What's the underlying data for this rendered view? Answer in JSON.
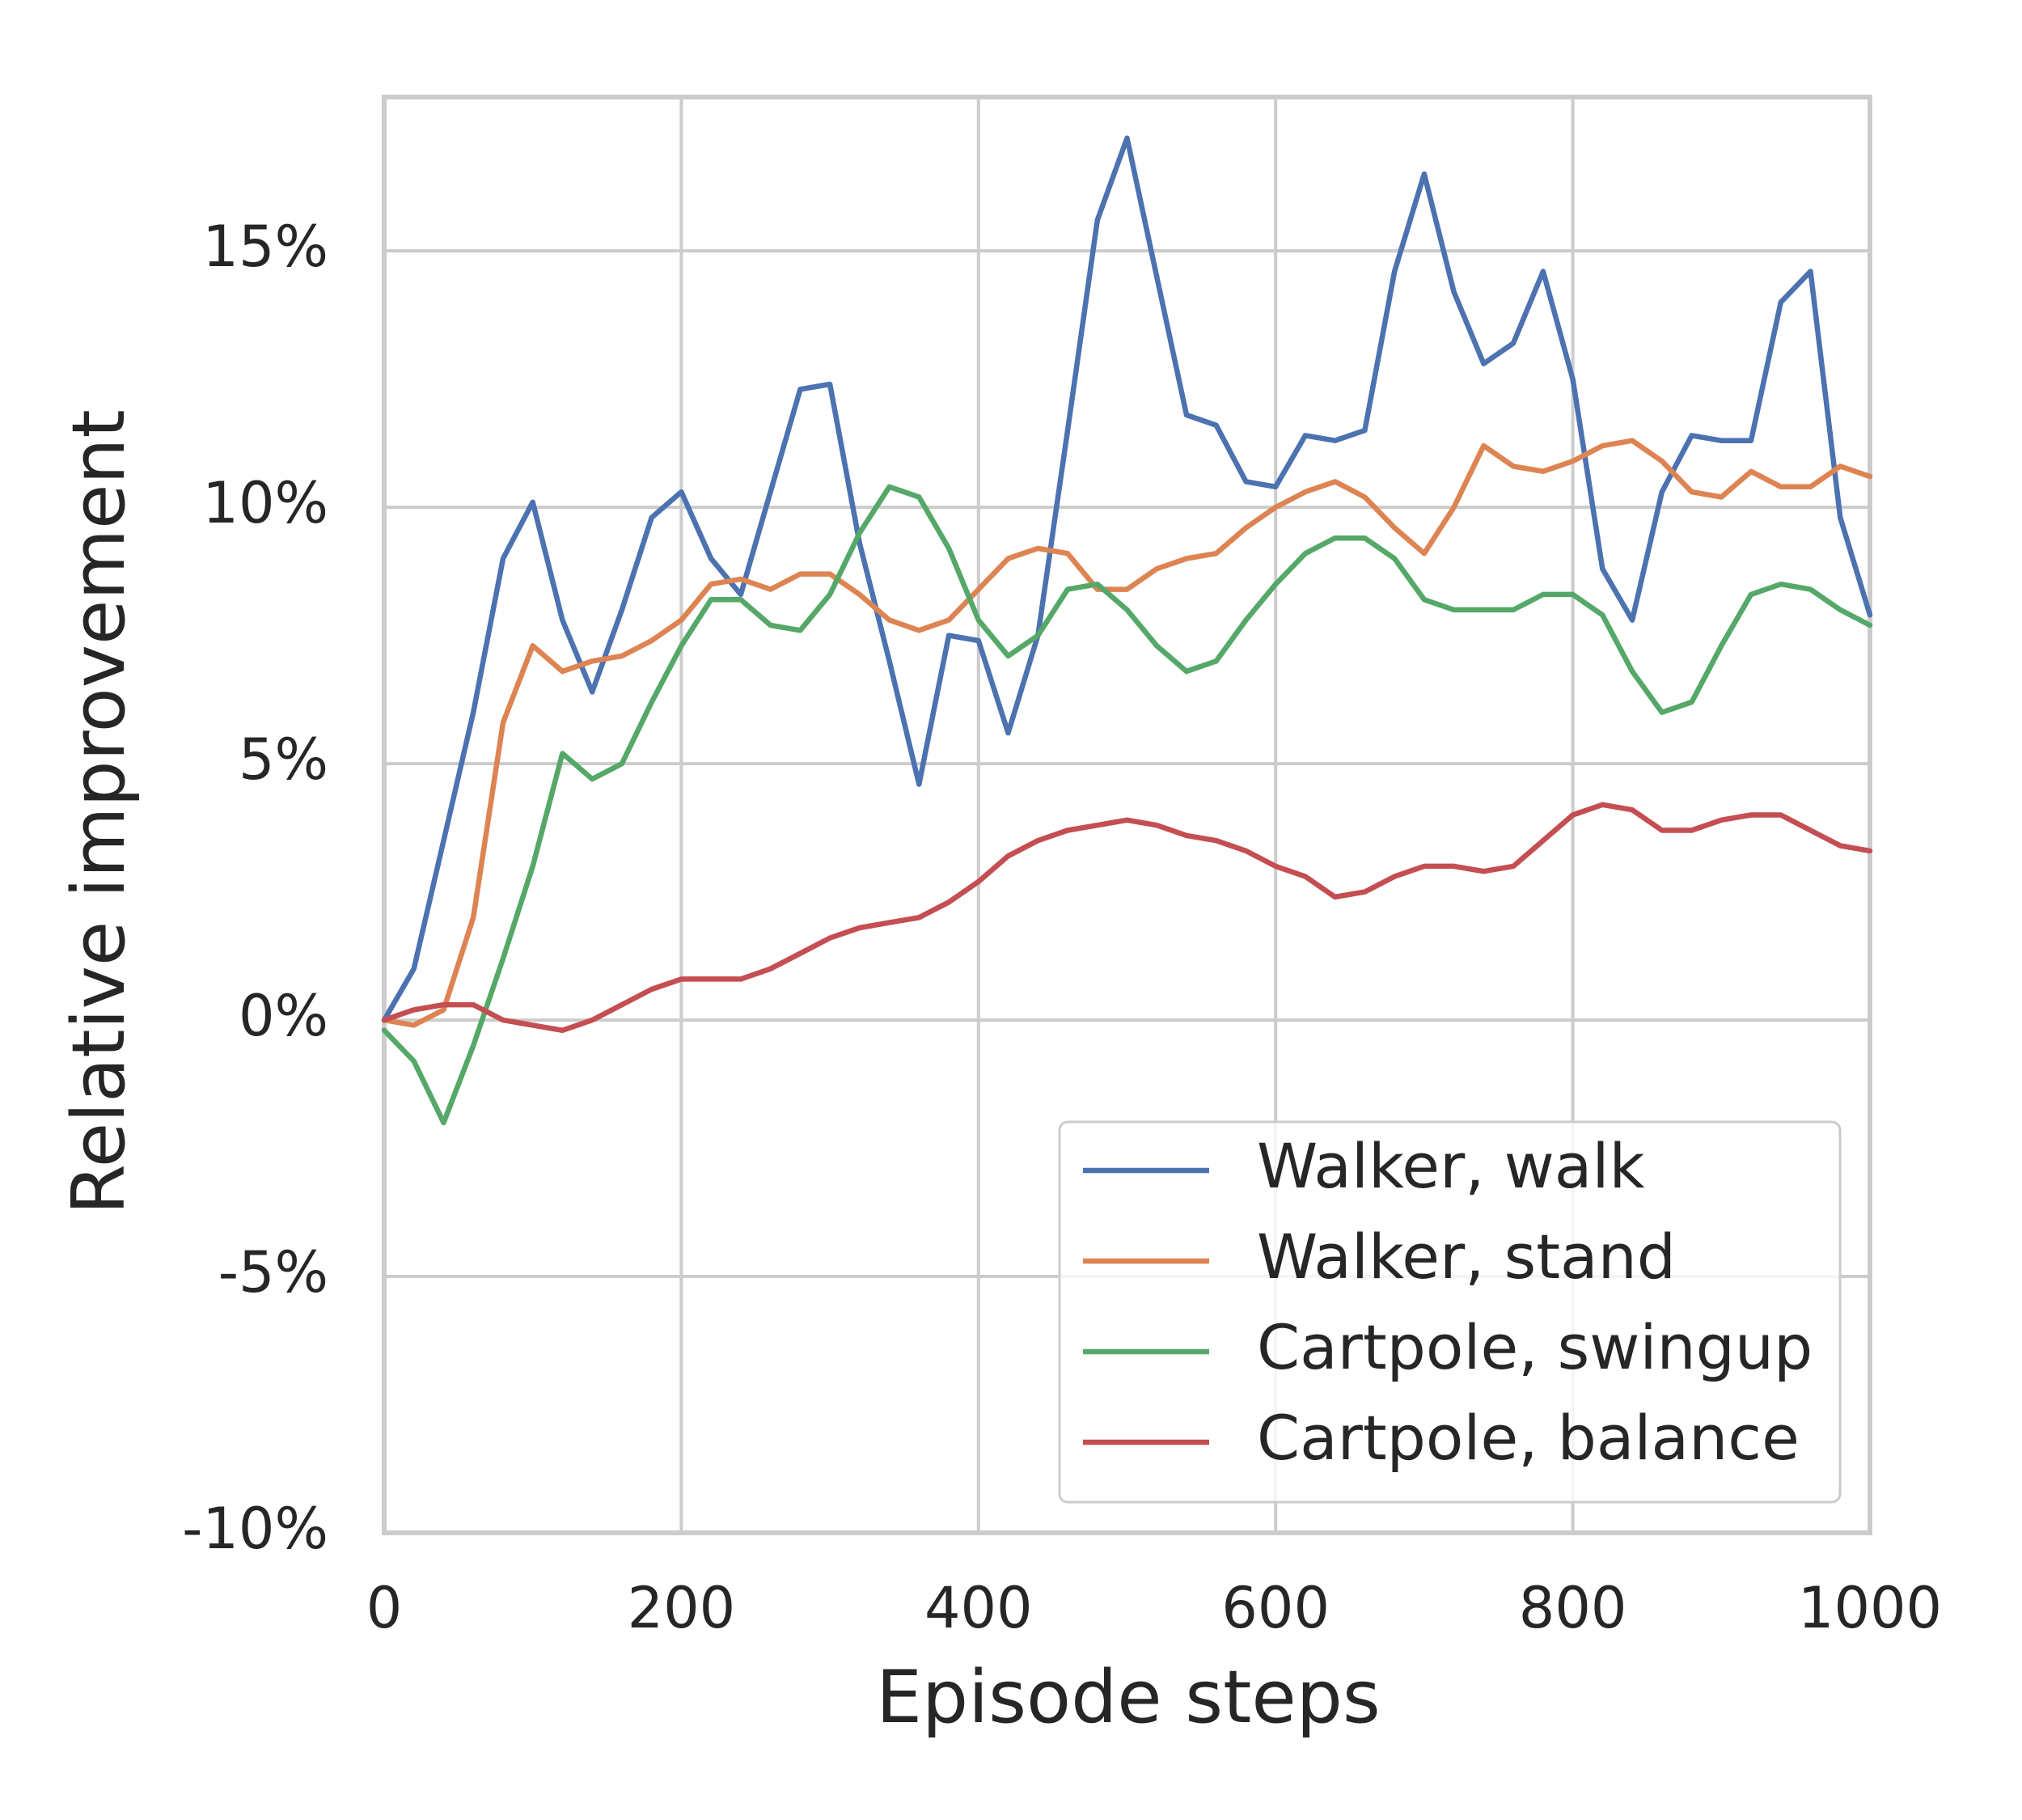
{
  "chart_data": {
    "type": "line",
    "xlabel": "Episode steps",
    "ylabel": "Relative improvement",
    "x": [
      0,
      20,
      40,
      60,
      80,
      100,
      120,
      140,
      160,
      180,
      200,
      220,
      240,
      260,
      280,
      300,
      320,
      340,
      360,
      380,
      400,
      420,
      440,
      460,
      480,
      500,
      520,
      540,
      560,
      580,
      600,
      620,
      640,
      660,
      680,
      700,
      720,
      740,
      760,
      780,
      800,
      820,
      840,
      860,
      880,
      900,
      920,
      940,
      960,
      980,
      1000
    ],
    "series": [
      {
        "name": "Walker, walk",
        "color": "#4c72b0",
        "values": [
          0,
          1.0,
          3.5,
          6.0,
          9.0,
          10.1,
          7.8,
          6.4,
          8.0,
          9.8,
          10.3,
          9.0,
          8.3,
          10.3,
          12.3,
          12.4,
          9.3,
          7.0,
          4.6,
          7.5,
          7.4,
          5.6,
          7.5,
          11.5,
          15.6,
          17.2,
          14.5,
          11.8,
          11.6,
          10.5,
          10.4,
          11.4,
          11.3,
          11.5,
          14.6,
          16.5,
          14.2,
          12.8,
          13.2,
          14.6,
          12.5,
          8.8,
          7.8,
          10.3,
          11.4,
          11.3,
          11.3,
          14.0,
          14.6,
          9.8,
          7.9
        ]
      },
      {
        "name": "Walker, stand",
        "color": "#dd8452",
        "values": [
          0,
          -0.1,
          0.2,
          2.0,
          5.8,
          7.3,
          6.8,
          7.0,
          7.1,
          7.4,
          7.8,
          8.5,
          8.6,
          8.4,
          8.7,
          8.7,
          8.3,
          7.8,
          7.6,
          7.8,
          8.4,
          9.0,
          9.2,
          9.1,
          8.4,
          8.4,
          8.8,
          9.0,
          9.1,
          9.6,
          10.0,
          10.3,
          10.5,
          10.2,
          9.6,
          9.1,
          10.0,
          11.2,
          10.8,
          10.7,
          10.9,
          11.2,
          11.3,
          10.9,
          10.3,
          10.2,
          10.7,
          10.4,
          10.4,
          10.8,
          10.6
        ]
      },
      {
        "name": "Cartpole, swingup",
        "color": "#55a868",
        "values": [
          -0.2,
          -0.8,
          -2.0,
          -0.5,
          1.2,
          3.0,
          5.2,
          4.7,
          5.0,
          6.2,
          7.3,
          8.2,
          8.2,
          7.7,
          7.6,
          8.3,
          9.5,
          10.4,
          10.2,
          9.2,
          7.8,
          7.1,
          7.5,
          8.4,
          8.5,
          8.0,
          7.3,
          6.8,
          7.0,
          7.8,
          8.5,
          9.1,
          9.4,
          9.4,
          9.0,
          8.2,
          8.0,
          8.0,
          8.0,
          8.3,
          8.3,
          7.9,
          6.8,
          6.0,
          6.2,
          7.3,
          8.3,
          8.5,
          8.4,
          8.0,
          7.7
        ]
      },
      {
        "name": "Cartpole, balance",
        "color": "#c44e52",
        "values": [
          0,
          0.2,
          0.3,
          0.3,
          0.0,
          -0.1,
          -0.2,
          0.0,
          0.3,
          0.6,
          0.8,
          0.8,
          0.8,
          1.0,
          1.3,
          1.6,
          1.8,
          1.9,
          2.0,
          2.3,
          2.7,
          3.2,
          3.5,
          3.7,
          3.8,
          3.9,
          3.8,
          3.6,
          3.5,
          3.3,
          3.0,
          2.8,
          2.4,
          2.5,
          2.8,
          3.0,
          3.0,
          2.9,
          3.0,
          3.5,
          4.0,
          4.2,
          4.1,
          3.7,
          3.7,
          3.9,
          4.0,
          4.0,
          3.7,
          3.4,
          3.3
        ]
      }
    ],
    "xlim": [
      0,
      1000
    ],
    "xticks": [
      0,
      200,
      400,
      600,
      800,
      1000
    ],
    "ylim": [
      -10,
      18
    ],
    "yticks": [
      {
        "value": -10,
        "label": "-10%"
      },
      {
        "value": -5,
        "label": "-5%"
      },
      {
        "value": 0,
        "label": "0%"
      },
      {
        "value": 5,
        "label": "5%"
      },
      {
        "value": 10,
        "label": "10%"
      },
      {
        "value": 15,
        "label": "15%"
      }
    ],
    "grid": true,
    "legend": "lower right"
  }
}
